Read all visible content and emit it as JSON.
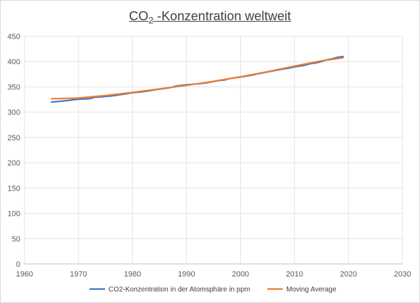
{
  "chart_data": {
    "type": "line",
    "title_prefix": "CO",
    "title_sub": "2",
    "title_suffix": " -Konzentration weltweit",
    "xlabel": "",
    "ylabel": "",
    "xlim": [
      1960,
      2030
    ],
    "ylim": [
      0,
      450
    ],
    "x_ticks": [
      1960,
      1970,
      1980,
      1990,
      2000,
      2010,
      2020,
      2030
    ],
    "y_ticks": [
      0,
      50,
      100,
      150,
      200,
      250,
      300,
      350,
      400,
      450
    ],
    "grid": true,
    "legend_position": "bottom",
    "series": [
      {
        "name": "CO2-Konzentration in der Atomsphäre in ppm",
        "color": "#4472C4",
        "x": [
          1965,
          1966,
          1967,
          1968,
          1969,
          1970,
          1971,
          1972,
          1973,
          1974,
          1975,
          1976,
          1977,
          1978,
          1979,
          1980,
          1981,
          1982,
          1983,
          1984,
          1985,
          1986,
          1987,
          1988,
          1989,
          1990,
          1991,
          1992,
          1993,
          1994,
          1995,
          1996,
          1997,
          1998,
          1999,
          2000,
          2001,
          2002,
          2003,
          2004,
          2005,
          2006,
          2007,
          2008,
          2009,
          2010,
          2011,
          2012,
          2013,
          2014,
          2015,
          2016,
          2017,
          2018,
          2019
        ],
        "values": [
          320,
          321,
          322,
          323,
          324.5,
          325.5,
          326,
          326.5,
          329.5,
          330,
          331,
          332,
          333.5,
          335,
          336.5,
          338.5,
          339.5,
          340.5,
          342,
          344,
          345.5,
          347,
          348.5,
          351.5,
          353,
          354,
          355,
          356,
          357,
          358.5,
          360.5,
          362.5,
          363.5,
          366.5,
          368,
          369.5,
          371,
          373,
          375.5,
          377.5,
          379.5,
          381.5,
          383.5,
          385.5,
          387,
          389.5,
          391,
          393,
          396,
          397.5,
          400,
          403.5,
          405.5,
          408.5,
          410
        ]
      },
      {
        "name": "Moving Average",
        "color": "#ED7D31",
        "x": [
          1965,
          1970,
          1975,
          1980,
          1985,
          1990,
          1995,
          2000,
          2005,
          2010,
          2015,
          2019
        ],
        "values": [
          326.5,
          328,
          333,
          339,
          346,
          353,
          361,
          370,
          380,
          391,
          401.5,
          407.5
        ]
      }
    ]
  }
}
